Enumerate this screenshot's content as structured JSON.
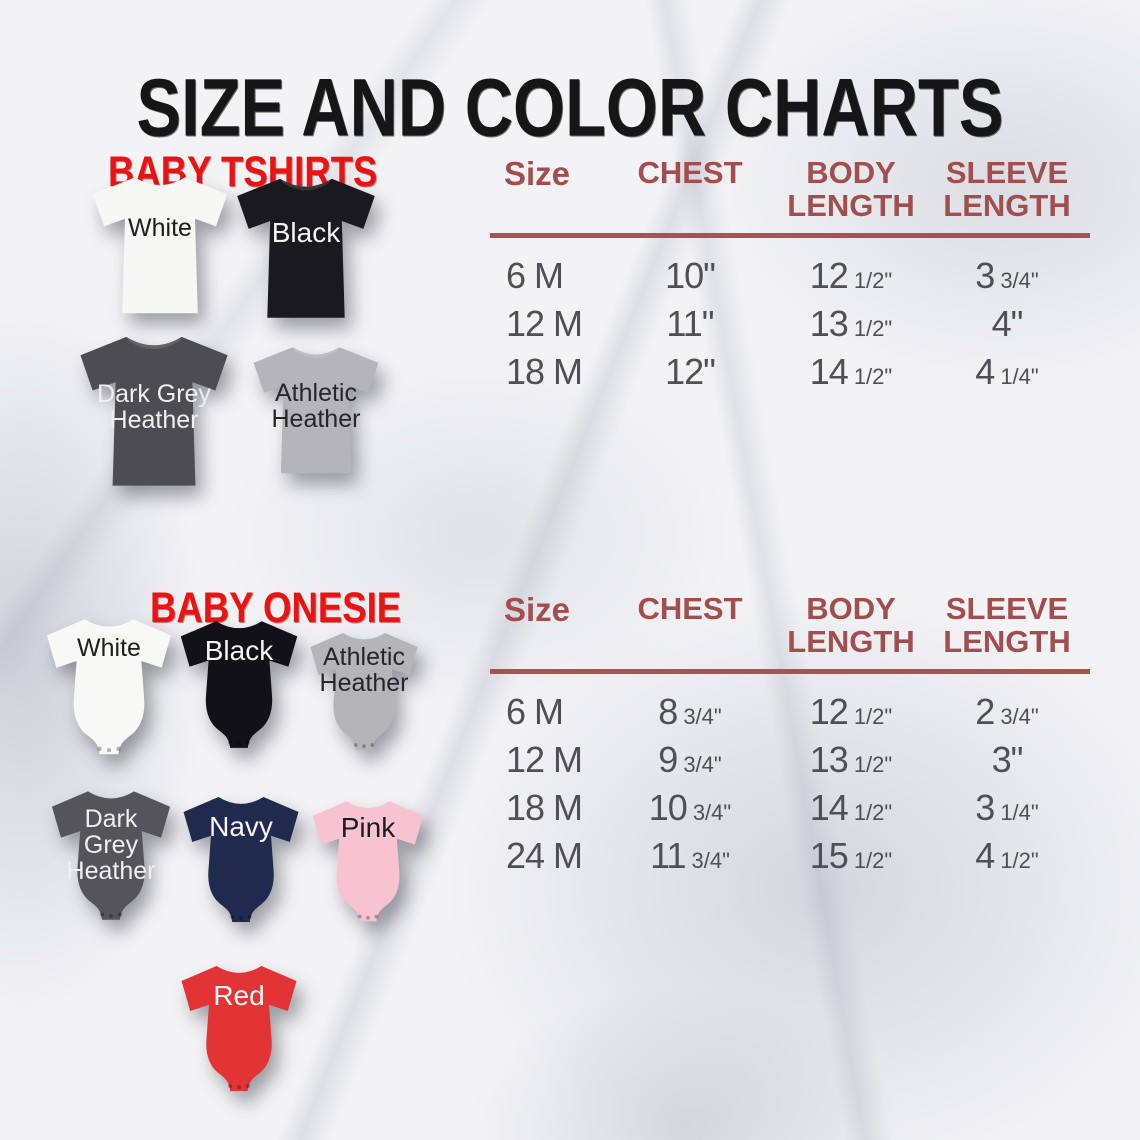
{
  "title": "SIZE AND COLOR CHARTS",
  "colors": {
    "title_black": "#161616",
    "heading_red": "#e81414",
    "table_header_red": "#a34e4e",
    "divider_red": "#a85252",
    "table_value_grey": "#4f4f55"
  },
  "sections": [
    {
      "heading": "BABY TSHIRTS",
      "garments": [
        {
          "label": "White",
          "color_hex": "#f7f7f5",
          "text_color": "#1e1e1e"
        },
        {
          "label": "Black",
          "color_hex": "#1a1a1e",
          "text_color": "#f5f5f5"
        },
        {
          "label": "Dark Grey Heather",
          "color_hex": "#4c4c52",
          "text_color": "#f0f0f0"
        },
        {
          "label": "Athletic Heather",
          "color_hex": "#b5b5b9",
          "text_color": "#26262a"
        }
      ]
    },
    {
      "heading": "BABY ONESIE",
      "garments": [
        {
          "label": "White",
          "color_hex": "#f8f8f6",
          "text_color": "#1e1e1e"
        },
        {
          "label": "Black",
          "color_hex": "#121216",
          "text_color": "#f5f5f5"
        },
        {
          "label": "Athletic Heather",
          "color_hex": "#b5b5b7",
          "text_color": "#26262a"
        },
        {
          "label": "Dark Grey Heather",
          "color_hex": "#54545a",
          "text_color": "#f0f0f0"
        },
        {
          "label": "Navy",
          "color_hex": "#20294e",
          "text_color": "#f5f5f5"
        },
        {
          "label": "Pink",
          "color_hex": "#f8c3d0",
          "text_color": "#1c1c1c"
        },
        {
          "label": "Red",
          "color_hex": "#e23434",
          "text_color": "#f7f7f7"
        }
      ]
    }
  ],
  "chart_data": [
    {
      "type": "table",
      "title": "BABY TSHIRTS",
      "columns": [
        "Size",
        "CHEST",
        "BODY LENGTH",
        "SLEEVE LENGTH"
      ],
      "rows": [
        [
          "6 M",
          "10\"",
          "12 1/2\"",
          "3 3/4\""
        ],
        [
          "12 M",
          "11\"",
          "13 1/2\"",
          "4\""
        ],
        [
          "18 M",
          "12\"",
          "14 1/2\"",
          "4 1/4\""
        ]
      ]
    },
    {
      "type": "table",
      "title": "BABY ONESIE",
      "columns": [
        "Size",
        "CHEST",
        "BODY LENGTH",
        "SLEEVE LENGTH"
      ],
      "rows": [
        [
          "6 M",
          "8 3/4\"",
          "12 1/2\"",
          "2 3/4\""
        ],
        [
          "12 M",
          "9 3/4\"",
          "13 1/2\"",
          "3\""
        ],
        [
          "18 M",
          "10 3/4\"",
          "14 1/2\"",
          "3 1/4\""
        ],
        [
          "24 M",
          "11 3/4\"",
          "15 1/2\"",
          "4 1/2\""
        ]
      ]
    }
  ]
}
